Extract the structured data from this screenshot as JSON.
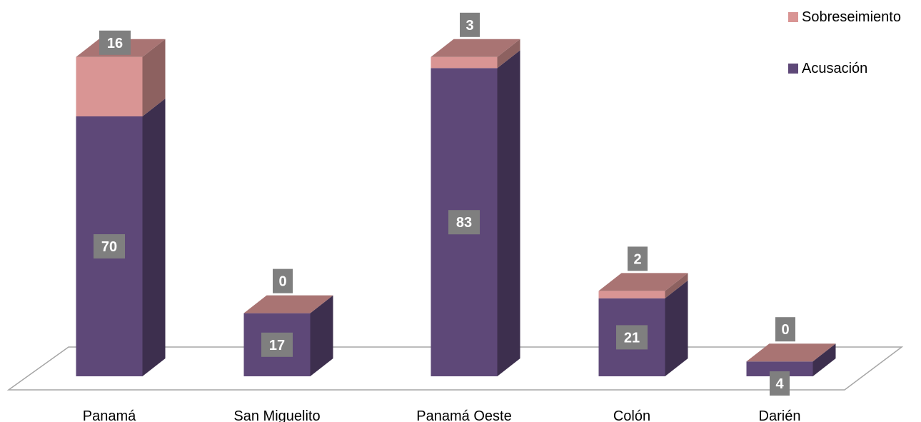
{
  "chart_data": {
    "type": "bar",
    "stacked": true,
    "style": "3d",
    "categories": [
      "Panamá",
      "San Miguelito",
      "Panamá Oeste",
      "Colón",
      "Darién"
    ],
    "series": [
      {
        "name": "Acusación",
        "color": "#5e4878",
        "values": [
          70,
          17,
          83,
          21,
          4
        ]
      },
      {
        "name": "Sobreseimiento",
        "color": "#d99594",
        "values": [
          16,
          0,
          3,
          2,
          0
        ]
      }
    ],
    "legend_position": "top-right",
    "grid": false
  }
}
